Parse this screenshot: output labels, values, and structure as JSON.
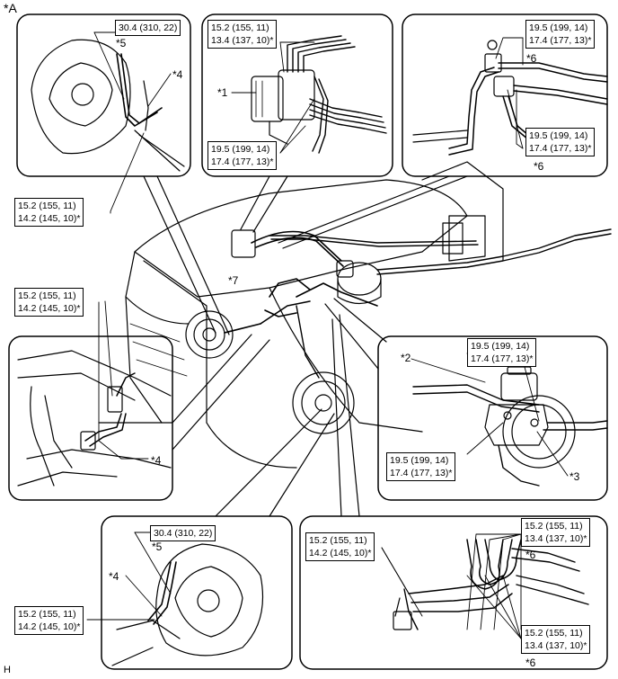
{
  "figure": {
    "label": "*A",
    "footer_code": "H"
  },
  "callouts": {
    "c1": "*1",
    "c2": "*2",
    "c3": "*3",
    "c4a": "*4",
    "c4b": "*4",
    "c4c": "*4",
    "c5a": "*5",
    "c5b": "*5",
    "c6a": "*6",
    "c6b": "*6",
    "c6c": "*6",
    "c6d": "*6",
    "c7": "*7"
  },
  "torque_boxes": {
    "t1": {
      "line1": "30.4 (310, 22)"
    },
    "t2": {
      "line1": "15.2 (155, 11)",
      "line2": "13.4 (137, 10)*"
    },
    "t3": {
      "line1": "19.5 (199, 14)",
      "line2": "17.4 (177, 13)*"
    },
    "t4": {
      "line1": "19.5 (199, 14)",
      "line2": "17.4 (177, 13)*"
    },
    "t5": {
      "line1": "19.5 (199, 14)",
      "line2": "17.4 (177, 13)*"
    },
    "t6": {
      "line1": "15.2 (155, 11)",
      "line2": "14.2 (145, 10)*"
    },
    "t7": {
      "line1": "15.2 (155, 11)",
      "line2": "14.2 (145, 10)*"
    },
    "t8": {
      "line1": "19.5 (199, 14)",
      "line2": "17.4 (177, 13)*"
    },
    "t9": {
      "line1": "19.5 (199, 14)",
      "line2": "17.4 (177, 13)*"
    },
    "t10": {
      "line1": "30.4 (310, 22)"
    },
    "t11": {
      "line1": "15.2 (155, 11)",
      "line2": "14.2 (145, 10)*"
    },
    "t12": {
      "line1": "15.2 (155, 11)",
      "line2": "14.2 (145, 10)*"
    },
    "t13": {
      "line1": "15.2 (155, 11)",
      "line2": "13.4 (137, 10)*"
    },
    "t14": {
      "line1": "15.2 (155, 11)",
      "line2": "13.4 (137, 10)*"
    }
  }
}
